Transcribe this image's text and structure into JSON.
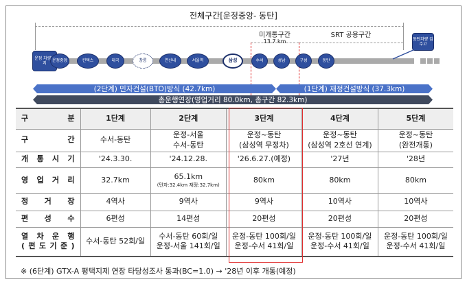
{
  "diagram": {
    "title": "전체구간[운정중앙- 동탄]",
    "unopened_label": "미개통구간",
    "unopened_length": "13.7 km",
    "srt_label": "SRT 공용구간",
    "depot_start": "운정 차량기지",
    "depot_end": "동탄차량 검수고",
    "stations": [
      "운정중앙",
      "킨텍스",
      "대곡",
      "창릉",
      "연신내",
      "서울역",
      "삼성",
      "수서",
      "성남",
      "구성",
      "동탄"
    ],
    "bar_stage2": "(2단계) 민자건설(BTO)방식 (42.7km)",
    "bar_stage1": "(1단계) 재정건설방식 (37.3km)",
    "bar_total": "총운행연장(영업거리 80.0km, 총구간 82.3km)",
    "colors": {
      "station": "#2f4f9e",
      "arrow": "#4a72c8",
      "total": "#404a5e",
      "highlight": "#e03030"
    }
  },
  "table": {
    "headers": [
      "구 분",
      "1단계",
      "2단계",
      "3단계",
      "4단계",
      "5단계"
    ],
    "rows": [
      {
        "label": "구 간",
        "cells": [
          [
            "수서-동탄"
          ],
          [
            "운정-서울",
            "수서-동탄"
          ],
          [
            "운정~동탄",
            "(삼성역 무정차)"
          ],
          [
            "운정~동탄",
            "(삼성역 2호선 연계)"
          ],
          [
            "운정~동탄",
            "(완전개통)"
          ]
        ]
      },
      {
        "label": "개 통 시 기",
        "cells": [
          [
            "'24.3.30."
          ],
          [
            "'24.12.28."
          ],
          [
            "'26.6.27.(예정)"
          ],
          [
            "'27년"
          ],
          [
            "'28년"
          ]
        ]
      },
      {
        "label": "영 업 거 리",
        "cells": [
          [
            "32.7km"
          ],
          [
            "65.1km",
            "(민자:32.4km 재정:32.7km)"
          ],
          [
            "80km"
          ],
          [
            "80km"
          ],
          [
            "80km"
          ]
        ]
      },
      {
        "label": "정 거 장",
        "cells": [
          [
            "4역사"
          ],
          [
            "9역사"
          ],
          [
            "9역사"
          ],
          [
            "10역사"
          ],
          [
            "10역사"
          ]
        ]
      },
      {
        "label": "편 성 수",
        "cells": [
          [
            "6편성"
          ],
          [
            "14편성"
          ],
          [
            "20편성"
          ],
          [
            "20편성"
          ],
          [
            "20편성"
          ]
        ]
      },
      {
        "label": "열 차 운 행",
        "label2": "( 편 도 기 준 )",
        "cells": [
          [
            "수서-동탄 52회/일"
          ],
          [
            "수서-동탄 60회/일",
            "운정-서울 141회/일"
          ],
          [
            "운정-동탄 100회/일",
            "운정-수서 41회/일"
          ],
          [
            "운정-동탄 100회/일",
            "운정-수서 41회/일"
          ],
          [
            "운정-동탄 100회/일",
            "운정-수서 41회/일"
          ]
        ]
      }
    ]
  },
  "footnote": "※ (6단계) GTX-A 평택지제 연장 타당성조사 통과(BC=1.0) → '28년 이후 개통(예정)"
}
